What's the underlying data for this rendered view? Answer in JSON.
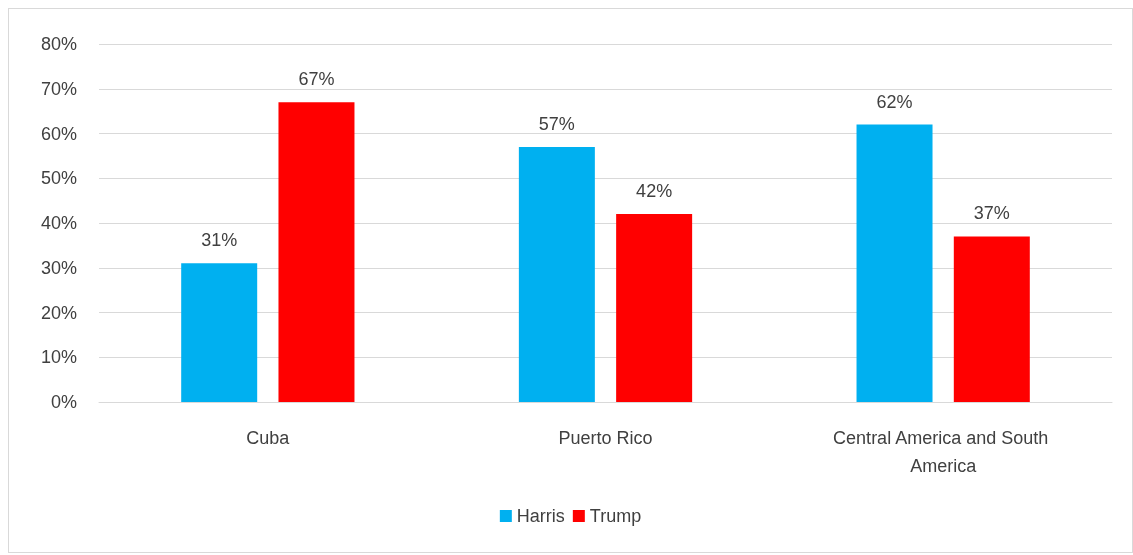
{
  "chart_data": {
    "type": "bar",
    "categories": [
      "Cuba",
      "Puerto Rico",
      "Central America and South America"
    ],
    "series": [
      {
        "name": "Harris",
        "color": "#00b0f0",
        "values": [
          31,
          57,
          62
        ],
        "value_labels": [
          "31%",
          "57%",
          "62%"
        ]
      },
      {
        "name": "Trump",
        "color": "#ff0000",
        "values": [
          67,
          42,
          37
        ],
        "value_labels": [
          "67%",
          "42%",
          "37%"
        ]
      }
    ],
    "ylim": [
      0,
      80
    ],
    "yticks": [
      {
        "value": 0,
        "label": "0%"
      },
      {
        "value": 10,
        "label": "10%"
      },
      {
        "value": 20,
        "label": "20%"
      },
      {
        "value": 30,
        "label": "30%"
      },
      {
        "value": 40,
        "label": "40%"
      },
      {
        "value": 50,
        "label": "50%"
      },
      {
        "value": 60,
        "label": "60%"
      },
      {
        "value": 70,
        "label": "70%"
      },
      {
        "value": 80,
        "label": "80%"
      }
    ],
    "grid": "y",
    "legend": "bottom"
  }
}
